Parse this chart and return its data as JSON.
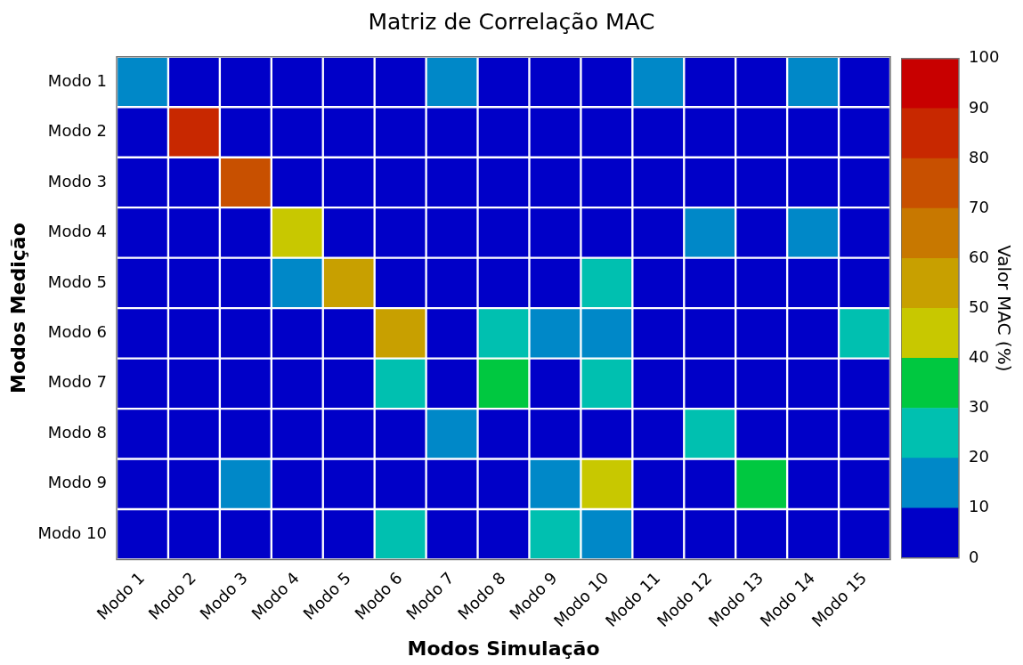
{
  "chart_data": {
    "type": "heatmap",
    "title": "Matriz de Correlação MAC",
    "xlabel": "Modos Simulação",
    "ylabel": "Modos Medição",
    "clabel": "Valor MAC (%)",
    "categories": [
      "Modo 1",
      "Modo 2",
      "Modo 3",
      "Modo 4",
      "Modo 5",
      "Modo 6",
      "Modo 7",
      "Modo 8",
      "Modo 9",
      "Modo 10",
      "Modo 11",
      "Modo 12",
      "Modo 13",
      "Modo 14",
      "Modo 15"
    ],
    "y_categories": [
      "Modo 1",
      "Modo 2",
      "Modo 3",
      "Modo 4",
      "Modo 5",
      "Modo 6",
      "Modo 7",
      "Modo 8",
      "Modo 9",
      "Modo 10"
    ],
    "cells": [
      [
        15,
        5,
        5,
        5,
        5,
        5,
        15,
        5,
        5,
        5,
        15,
        5,
        5,
        15,
        5
      ],
      [
        5,
        85,
        5,
        5,
        5,
        5,
        5,
        5,
        5,
        5,
        5,
        5,
        5,
        5,
        5
      ],
      [
        5,
        5,
        75,
        5,
        5,
        5,
        5,
        5,
        5,
        5,
        5,
        5,
        5,
        5,
        5
      ],
      [
        5,
        5,
        5,
        45,
        5,
        5,
        5,
        5,
        5,
        5,
        5,
        15,
        5,
        15,
        5
      ],
      [
        5,
        5,
        5,
        15,
        55,
        5,
        5,
        5,
        5,
        25,
        5,
        5,
        5,
        5,
        5
      ],
      [
        5,
        5,
        5,
        5,
        5,
        55,
        5,
        25,
        15,
        15,
        5,
        5,
        5,
        5,
        25
      ],
      [
        5,
        5,
        5,
        5,
        5,
        25,
        5,
        35,
        5,
        25,
        5,
        5,
        5,
        5,
        5
      ],
      [
        5,
        5,
        5,
        5,
        5,
        5,
        15,
        5,
        5,
        5,
        5,
        25,
        5,
        5,
        5
      ],
      [
        5,
        5,
        15,
        5,
        5,
        5,
        5,
        5,
        15,
        45,
        5,
        5,
        35,
        5,
        5
      ],
      [
        5,
        5,
        5,
        5,
        5,
        25,
        5,
        5,
        25,
        15,
        5,
        5,
        5,
        5,
        5
      ]
    ],
    "clim": [
      0,
      100
    ],
    "cticks": [
      0,
      10,
      20,
      30,
      40,
      50,
      60,
      70,
      80,
      90,
      100
    ]
  }
}
